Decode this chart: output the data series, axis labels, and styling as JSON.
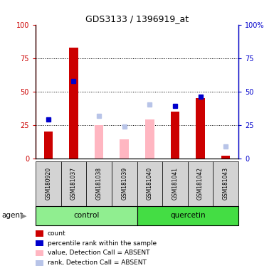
{
  "title": "GDS3133 / 1396919_at",
  "samples": [
    "GSM180920",
    "GSM181037",
    "GSM181038",
    "GSM181039",
    "GSM181040",
    "GSM181041",
    "GSM181042",
    "GSM181043"
  ],
  "count_values": [
    20,
    83,
    null,
    null,
    null,
    35,
    45,
    2
  ],
  "rank_values": [
    29,
    58,
    null,
    null,
    null,
    39,
    46,
    null
  ],
  "absent_value": [
    null,
    null,
    25,
    14,
    29,
    null,
    null,
    null
  ],
  "absent_rank": [
    null,
    null,
    32,
    24,
    40,
    null,
    null,
    9
  ],
  "yticks": [
    0,
    25,
    50,
    75,
    100
  ],
  "count_color": "#CC0000",
  "rank_color": "#0000CC",
  "absent_value_color": "#FFB6C1",
  "absent_rank_color": "#B8C4E8",
  "control_color": "#90EE90",
  "quercetin_color": "#44DD44",
  "sample_bg": "#D3D3D3",
  "title_fontsize": 9,
  "bar_width": 0.35,
  "marker_size": 5
}
